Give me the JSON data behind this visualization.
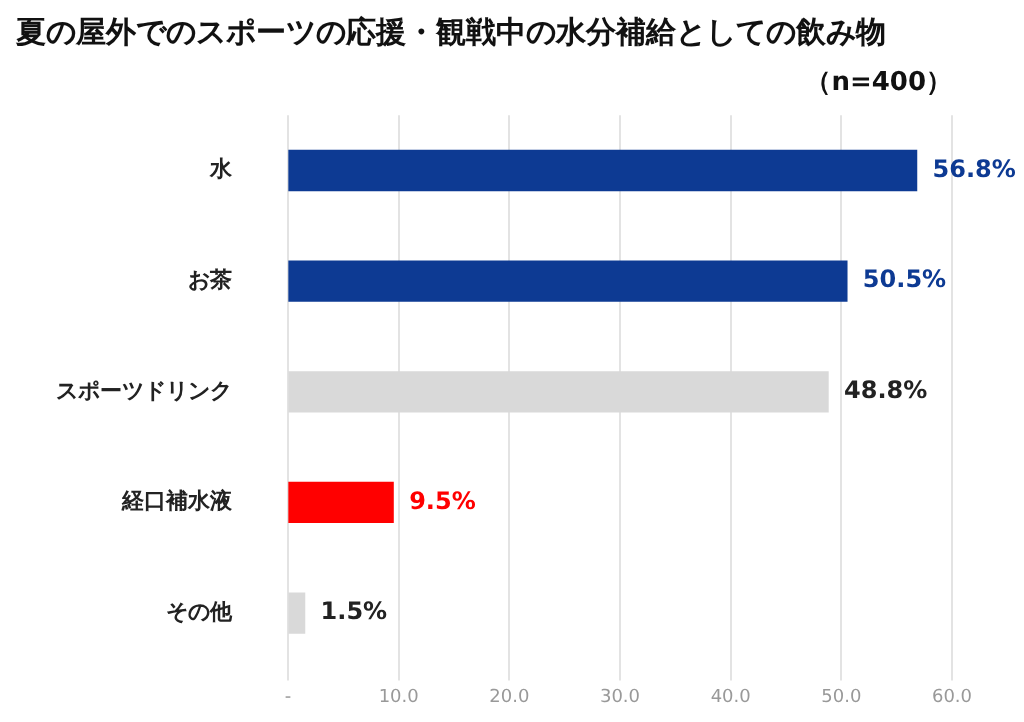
{
  "chart_data": {
    "type": "bar",
    "orientation": "horizontal",
    "title": "夏の屋外でのスポーツの応援・観戦中の水分補給としての飲み物",
    "subtitle": "（n=400）",
    "categories": [
      "水",
      "お茶",
      "スポーツドリンク",
      "経口補水液",
      "その他"
    ],
    "values": [
      56.8,
      50.5,
      48.8,
      9.5,
      1.5
    ],
    "colors": [
      "#0d3a93",
      "#0d3a93",
      "#d9d9d9",
      "#ff0000",
      "#d9d9d9"
    ],
    "value_labels": [
      "56.8%",
      "50.5%",
      "48.8%",
      "9.5%",
      "1.5%"
    ],
    "xlim": [
      0,
      60
    ],
    "xticks": [
      {
        "value": 0,
        "label": "-"
      },
      {
        "value": 10,
        "label": "10.0"
      },
      {
        "value": 20,
        "label": "20.0"
      },
      {
        "value": 30,
        "label": "30.0"
      },
      {
        "value": 40,
        "label": "40.0"
      },
      {
        "value": 50,
        "label": "50.0"
      },
      {
        "value": 60,
        "label": "60.0"
      }
    ],
    "grid": "x",
    "legend": false
  }
}
